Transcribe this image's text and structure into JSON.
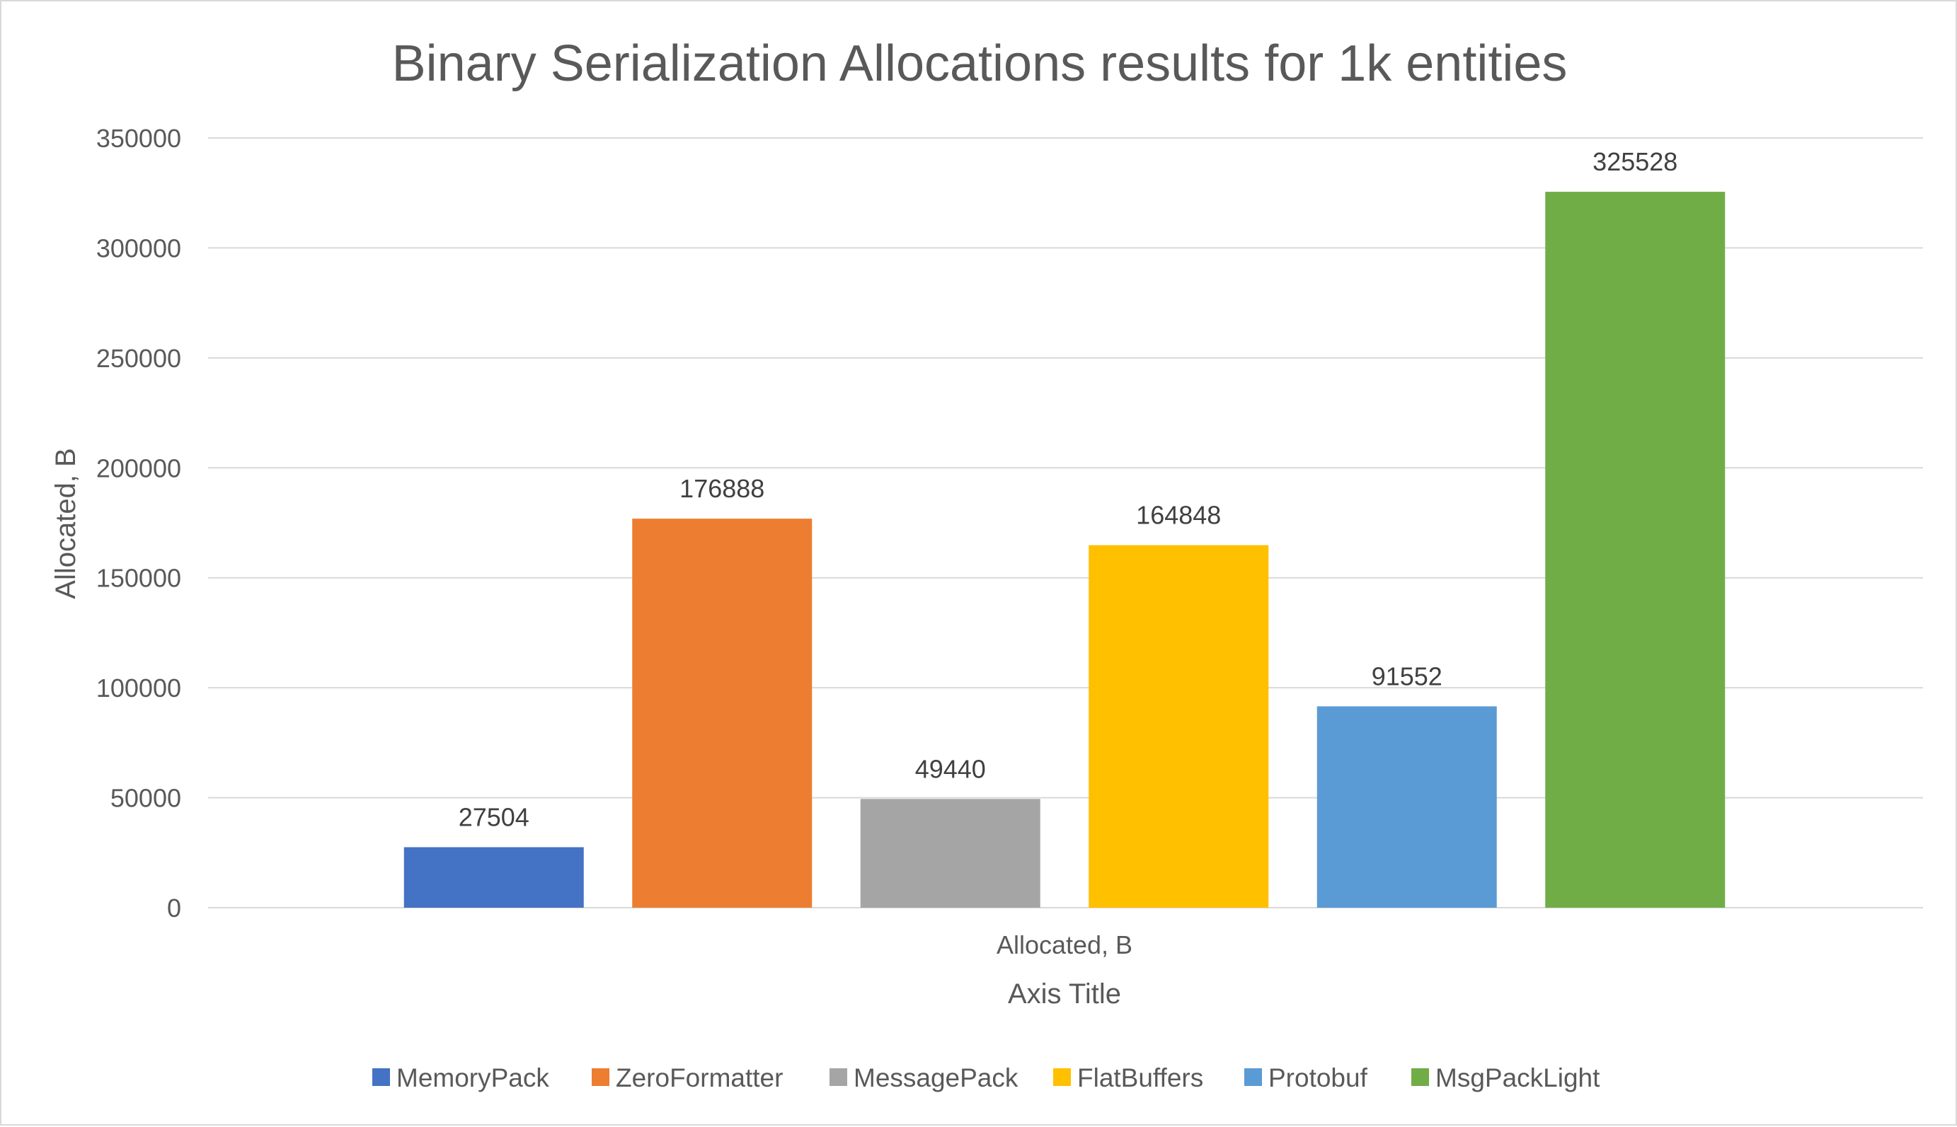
{
  "chart_data": {
    "type": "bar",
    "title": "Binary Serialization Allocations results for 1k entities",
    "categories": [
      "Allocated, B"
    ],
    "xlabel": "Axis Title",
    "ylabel": "Allocated, B",
    "ylim": [
      0,
      350000
    ],
    "yticks": [
      0,
      50000,
      100000,
      150000,
      200000,
      250000,
      300000,
      350000
    ],
    "ytick_labels": [
      "0",
      "50000",
      "100000",
      "150000",
      "200000",
      "250000",
      "300000",
      "350000"
    ],
    "grid": true,
    "legend_position": "bottom",
    "series": [
      {
        "name": "MemoryPack",
        "values": [
          27504
        ],
        "label": "27504",
        "color": "#4472C4"
      },
      {
        "name": "ZeroFormatter",
        "values": [
          176888
        ],
        "label": "176888",
        "color": "#ED7D31"
      },
      {
        "name": "MessagePack",
        "values": [
          49440
        ],
        "label": "49440",
        "color": "#A5A5A5"
      },
      {
        "name": "FlatBuffers",
        "values": [
          164848
        ],
        "label": "164848",
        "color": "#FFC000"
      },
      {
        "name": "Protobuf",
        "values": [
          91552
        ],
        "label": "91552",
        "color": "#5B9BD5"
      },
      {
        "name": "MsgPackLight",
        "values": [
          325528
        ],
        "label": "325528",
        "color": "#70AD47"
      }
    ]
  }
}
